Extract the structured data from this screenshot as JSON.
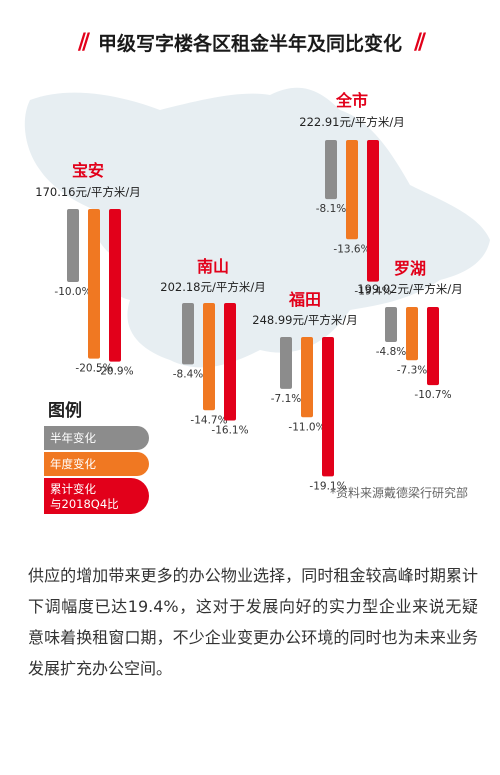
{
  "title": "甲级写字楼各区租金半年及同比变化",
  "colors": {
    "half_year": "#8c8c8c",
    "year": "#f07822",
    "cumulative": "#e2001a",
    "map": "#e7eef2",
    "title_accent": "#e2001a"
  },
  "chart_data": {
    "type": "bar",
    "title": "甲级写字楼各区租金半年及同比变化",
    "series_names": [
      "半年变化",
      "年度变化",
      "累计变化与2018Q4比"
    ],
    "unit": "%",
    "districts": [
      {
        "name": "宝安",
        "rent": "170.16元/平方米/月",
        "values": [
          -10.0,
          -20.5,
          -20.9
        ],
        "labels": [
          "-10.0%",
          "-20.5%",
          "-20.9%"
        ]
      },
      {
        "name": "全市",
        "rent": "222.91元/平方米/月",
        "values": [
          -8.1,
          -13.6,
          -19.4
        ],
        "labels": [
          "-8.1%",
          "-13.6%",
          "-19.4%"
        ]
      },
      {
        "name": "南山",
        "rent": "202.18元/平方米/月",
        "values": [
          -8.4,
          -14.7,
          -16.1
        ],
        "labels": [
          "-8.4%",
          "-14.7%",
          "-16.1%"
        ]
      },
      {
        "name": "福田",
        "rent": "248.99元/平方米/月",
        "values": [
          -7.1,
          -11.0,
          -19.1
        ],
        "labels": [
          "-7.1%",
          "-11.0%",
          "-19.1%"
        ]
      },
      {
        "name": "罗湖",
        "rent": "199.02元/平方米/月",
        "values": [
          -4.8,
          -7.3,
          -10.7
        ],
        "labels": [
          "-4.8%",
          "-7.3%",
          "-10.7%"
        ]
      }
    ]
  },
  "legend": {
    "title": "图例",
    "items": [
      {
        "line1": "半年变化",
        "line2": ""
      },
      {
        "line1": "年度变化",
        "line2": ""
      },
      {
        "line1": "累计变化",
        "line2": "与2018Q4比"
      }
    ]
  },
  "source": "*资料来源戴德梁行研究部",
  "paragraph": "供应的增加带来更多的办公物业选择，同时租金较高峰时期累计下调幅度已达19.4%，这对于发展向好的实力型企业来说无疑意味着换租窗口期，不少企业变更办公环境的同时也为未来业务发展扩充办公空间。"
}
